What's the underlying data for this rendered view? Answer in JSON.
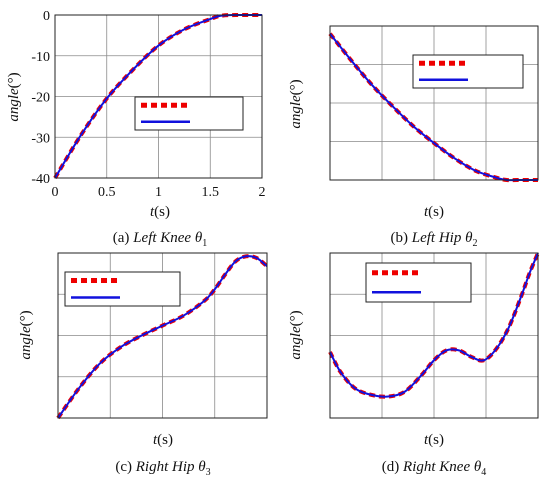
{
  "chart_data": [
    {
      "type": "line",
      "caption": "(a) Left Knee θ1",
      "xlabel": "t(s)",
      "ylabel": "angle(°)",
      "xlim": [
        0,
        2
      ],
      "ylim": [
        -40,
        0
      ],
      "x_ticks": [
        "0",
        "0.5",
        "1",
        "1.5",
        "2"
      ],
      "y_ticks": [
        "-40",
        "-30",
        "-20",
        "-10",
        "0"
      ],
      "grid": true,
      "legend": "center",
      "series": [
        {
          "style": "dashed",
          "color": "#ee0000",
          "x": [
            0,
            0.25,
            0.5,
            0.75,
            1.0,
            1.25,
            1.5,
            1.6,
            1.75,
            2.0
          ],
          "y": [
            -40,
            -29.5,
            -20.5,
            -13.5,
            -7.5,
            -3.5,
            -1,
            -0.2,
            0,
            0
          ]
        },
        {
          "style": "solid",
          "color": "#1111dd",
          "x": [
            0,
            0.25,
            0.5,
            0.75,
            1.0,
            1.25,
            1.5,
            1.6,
            1.75,
            2.0
          ],
          "y": [
            -40,
            -29.5,
            -20.5,
            -13.5,
            -7.5,
            -3.5,
            -1,
            -0.2,
            0,
            0
          ]
        }
      ]
    },
    {
      "type": "line",
      "caption": "(b) Left Hip θ2",
      "xlabel": "t(s)",
      "ylabel": "angle(°)",
      "xlim": [
        0,
        1
      ],
      "ylim": [
        0,
        1
      ],
      "x_ticks": [],
      "y_ticks": [],
      "grid": true,
      "legend": "top-right",
      "series": [
        {
          "style": "dashed",
          "color": "#ee0000",
          "x": [
            0,
            0.1,
            0.2,
            0.3,
            0.4,
            0.5,
            0.6,
            0.7,
            0.8,
            0.85,
            0.9,
            1.0
          ],
          "y": [
            0.95,
            0.78,
            0.62,
            0.48,
            0.35,
            0.24,
            0.14,
            0.06,
            0.015,
            0,
            0,
            0
          ]
        },
        {
          "style": "solid",
          "color": "#1111dd",
          "x": [
            0,
            0.1,
            0.2,
            0.3,
            0.4,
            0.5,
            0.6,
            0.7,
            0.8,
            0.85,
            0.9,
            1.0
          ],
          "y": [
            0.95,
            0.78,
            0.62,
            0.48,
            0.35,
            0.24,
            0.14,
            0.06,
            0.015,
            0,
            0,
            0
          ]
        }
      ]
    },
    {
      "type": "line",
      "caption": "(c) Right Hip θ3",
      "xlabel": "t(s)",
      "ylabel": "angle(°)",
      "xlim": [
        0,
        1
      ],
      "ylim": [
        0,
        1
      ],
      "x_ticks": [],
      "y_ticks": [],
      "grid": true,
      "legend": "top-left",
      "series": [
        {
          "style": "dashed",
          "color": "#ee0000",
          "x": [
            0,
            0.1,
            0.2,
            0.3,
            0.4,
            0.5,
            0.6,
            0.7,
            0.75,
            0.8,
            0.85,
            0.9,
            0.95,
            1.0
          ],
          "y": [
            0,
            0.18,
            0.33,
            0.43,
            0.5,
            0.56,
            0.62,
            0.71,
            0.78,
            0.87,
            0.95,
            0.98,
            0.97,
            0.92
          ]
        },
        {
          "style": "solid",
          "color": "#1111dd",
          "x": [
            0,
            0.1,
            0.2,
            0.3,
            0.4,
            0.5,
            0.6,
            0.7,
            0.75,
            0.8,
            0.85,
            0.9,
            0.95,
            1.0
          ],
          "y": [
            0,
            0.18,
            0.33,
            0.43,
            0.5,
            0.56,
            0.62,
            0.71,
            0.78,
            0.87,
            0.95,
            0.98,
            0.97,
            0.92
          ]
        }
      ]
    },
    {
      "type": "line",
      "caption": "(d) Right Knee θ4",
      "xlabel": "t(s)",
      "ylabel": "angle(°)",
      "xlim": [
        0,
        1
      ],
      "ylim": [
        0,
        1
      ],
      "x_ticks": [],
      "y_ticks": [],
      "grid": true,
      "legend": "top-left",
      "series": [
        {
          "style": "dashed",
          "color": "#ee0000",
          "x": [
            0,
            0.05,
            0.12,
            0.2,
            0.28,
            0.36,
            0.44,
            0.5,
            0.56,
            0.62,
            0.68,
            0.74,
            0.8,
            0.86,
            0.92,
            0.96,
            1.0
          ],
          "y": [
            0.4,
            0.28,
            0.18,
            0.14,
            0.13,
            0.16,
            0.26,
            0.35,
            0.41,
            0.41,
            0.37,
            0.35,
            0.42,
            0.55,
            0.74,
            0.88,
            1.0
          ]
        },
        {
          "style": "solid",
          "color": "#1111dd",
          "x": [
            0,
            0.05,
            0.12,
            0.2,
            0.28,
            0.36,
            0.44,
            0.5,
            0.56,
            0.62,
            0.68,
            0.74,
            0.8,
            0.86,
            0.92,
            0.96,
            1.0
          ],
          "y": [
            0.4,
            0.28,
            0.18,
            0.14,
            0.13,
            0.16,
            0.26,
            0.35,
            0.41,
            0.41,
            0.37,
            0.35,
            0.42,
            0.55,
            0.74,
            0.88,
            1.0
          ]
        }
      ]
    }
  ]
}
